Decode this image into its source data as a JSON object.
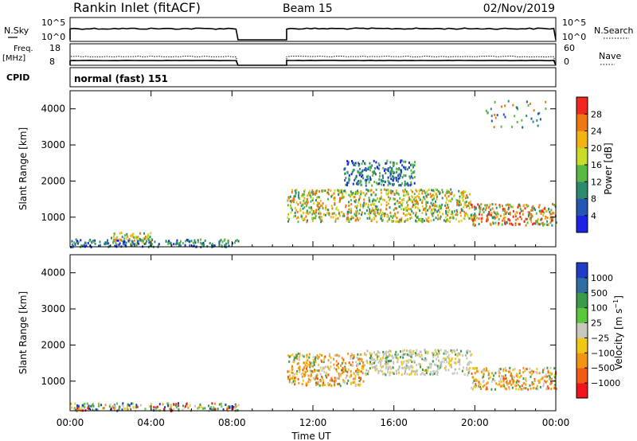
{
  "header": {
    "station": "Rankin Inlet (fitACF)",
    "beam": "Beam 15",
    "date": "02/Nov/2019"
  },
  "strips": {
    "nsky": {
      "label": "N.Sky",
      "tick_top": "10^5",
      "tick_bottom": "10^0"
    },
    "nsearch": {
      "label": "N.Search",
      "tick_top": "10^5",
      "tick_bottom": "10^0"
    },
    "freq": {
      "label_top": "Freq.",
      "label_bottom": "[MHz]",
      "tick_top": "18",
      "tick_bottom": "8"
    },
    "nave": {
      "label": "Nave",
      "tick_top": "60",
      "tick_bottom": "0"
    },
    "cpid": {
      "label": "CPID",
      "value": "normal (fast) 151"
    }
  },
  "chart_data": [
    {
      "type": "heatmap",
      "name": "power-panel",
      "ylabel": "Slant Range [km]",
      "xlabel": "Time UT",
      "x_ticks": [
        "00:00",
        "04:00",
        "08:00",
        "12:00",
        "16:00",
        "20:00",
        "00:00"
      ],
      "x_tick_hours": [
        0,
        4,
        8,
        12,
        16,
        20,
        24
      ],
      "y_ticks": [
        1000,
        2000,
        3000,
        4000
      ],
      "ylim": [
        180,
        4500
      ],
      "xlim_hours": [
        0,
        24
      ],
      "data_gaps_hours": [
        [
          8.3,
          10.7
        ]
      ],
      "colorbar": {
        "label": "Power [dB]",
        "ticks": [
          "4",
          "8",
          "12",
          "16",
          "20",
          "24",
          "28"
        ],
        "colors": [
          "#1e22e6",
          "#2456b4",
          "#2e8c6e",
          "#5ab846",
          "#c8dc28",
          "#f0b414",
          "#f07814",
          "#f0281e"
        ]
      },
      "scatter_regions": [
        {
          "hours": [
            0,
            8.3
          ],
          "range_km": [
            200,
            420
          ],
          "color": "blue-green"
        },
        {
          "hours": [
            2,
            4
          ],
          "range_km": [
            300,
            600
          ],
          "color": "green-orange"
        },
        {
          "hours": [
            10.7,
            19.8
          ],
          "range_km": [
            900,
            1800
          ],
          "color": "green-orange"
        },
        {
          "hours": [
            13.5,
            17
          ],
          "range_km": [
            1900,
            2600
          ],
          "color": "blue-green"
        },
        {
          "hours": [
            19.8,
            24
          ],
          "range_km": [
            800,
            1400
          ],
          "color": "orange-red"
        },
        {
          "hours": [
            20.5,
            23.5
          ],
          "range_km": [
            3500,
            4300
          ],
          "color": "sparse"
        }
      ]
    },
    {
      "type": "heatmap",
      "name": "velocity-panel",
      "ylabel": "Slant Range [km]",
      "xlabel": "Time UT",
      "x_ticks": [
        "00:00",
        "04:00",
        "08:00",
        "12:00",
        "16:00",
        "20:00",
        "00:00"
      ],
      "x_tick_hours": [
        0,
        4,
        8,
        12,
        16,
        20,
        24
      ],
      "y_ticks": [
        1000,
        2000,
        3000,
        4000
      ],
      "ylim": [
        180,
        4500
      ],
      "xlim_hours": [
        0,
        24
      ],
      "data_gaps_hours": [
        [
          8.3,
          10.7
        ]
      ],
      "colorbar": {
        "label": "Velocity [m s-1]",
        "ticks": [
          "1000",
          "500",
          "100",
          "25",
          "−25",
          "−100",
          "−500",
          "−1000"
        ],
        "colors": [
          "#1e3cc8",
          "#2e6ea0",
          "#3c9a4a",
          "#5ac83c",
          "#c8c8be",
          "#f0c814",
          "#f09614",
          "#f05a14",
          "#f0141e"
        ]
      },
      "scatter_regions": [
        {
          "hours": [
            0,
            8.3
          ],
          "range_km": [
            200,
            420
          ],
          "color": "mixed"
        },
        {
          "hours": [
            10.7,
            14.5
          ],
          "range_km": [
            900,
            1800
          ],
          "color": "orange"
        },
        {
          "hours": [
            14.5,
            19.8
          ],
          "range_km": [
            1200,
            1900
          ],
          "color": "grey"
        },
        {
          "hours": [
            19.8,
            24
          ],
          "range_km": [
            800,
            1400
          ],
          "color": "orange"
        }
      ]
    }
  ]
}
